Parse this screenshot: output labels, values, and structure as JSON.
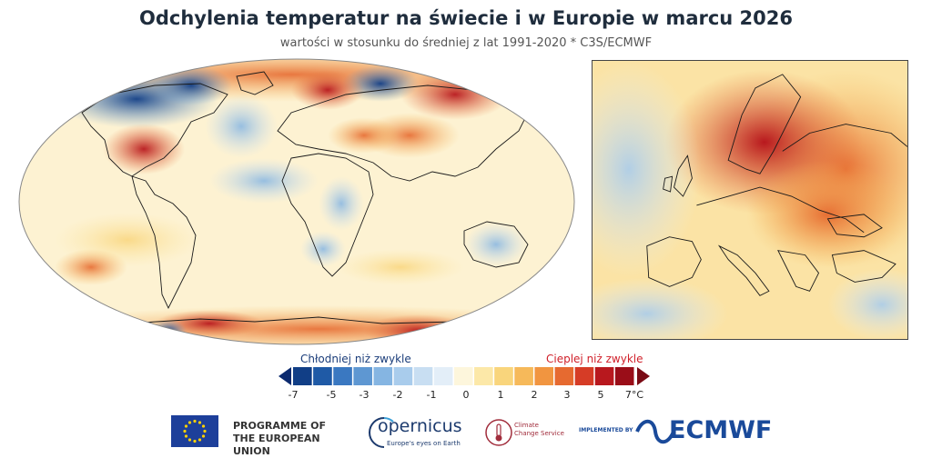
{
  "header": {
    "title": "Odchylenia temperatur na świecie i w Europie w marcu 2026",
    "subtitle": "wartości w stosunku do średniej z lat 1991-2020 * C3S/ECMWF"
  },
  "legend": {
    "cold_label": "Chłodniej niż zwykle",
    "warm_label": "Cieplej niż zwykle",
    "ticks": [
      "-7",
      "-5",
      "-3",
      "-2",
      "-1",
      "0",
      "1",
      "2",
      "3",
      "5",
      "7°C"
    ],
    "colors": {
      "cold_arrow": "#0b2a6e",
      "warm_arrow": "#7a0a14",
      "segments": [
        "#113e86",
        "#1f5aa6",
        "#3a78c1",
        "#5e97d2",
        "#85b5e2",
        "#a9ccec",
        "#c8def2",
        "#e3eef8",
        "#fdf6dc",
        "#fce8a8",
        "#f9d57c",
        "#f6b95a",
        "#f19540",
        "#e66a30",
        "#d63c26",
        "#b8181e",
        "#9a0d18"
      ]
    }
  },
  "footer": {
    "programme": [
      "PROGRAMME OF",
      "THE EUROPEAN UNION"
    ],
    "copernicus_name": "opernicus",
    "copernicus_tagline": "Europe's eyes on Earth",
    "c3s_name": [
      "Climate",
      "Change Service"
    ],
    "implemented_by": "IMPLEMENTED BY",
    "ecmwf_name": "ECMWF"
  },
  "palette": {
    "brand_blue": "#1a4a9a",
    "c3s_red": "#a12d3c",
    "eu_blue": "#1d3f9a",
    "eu_star": "#ffd100"
  }
}
